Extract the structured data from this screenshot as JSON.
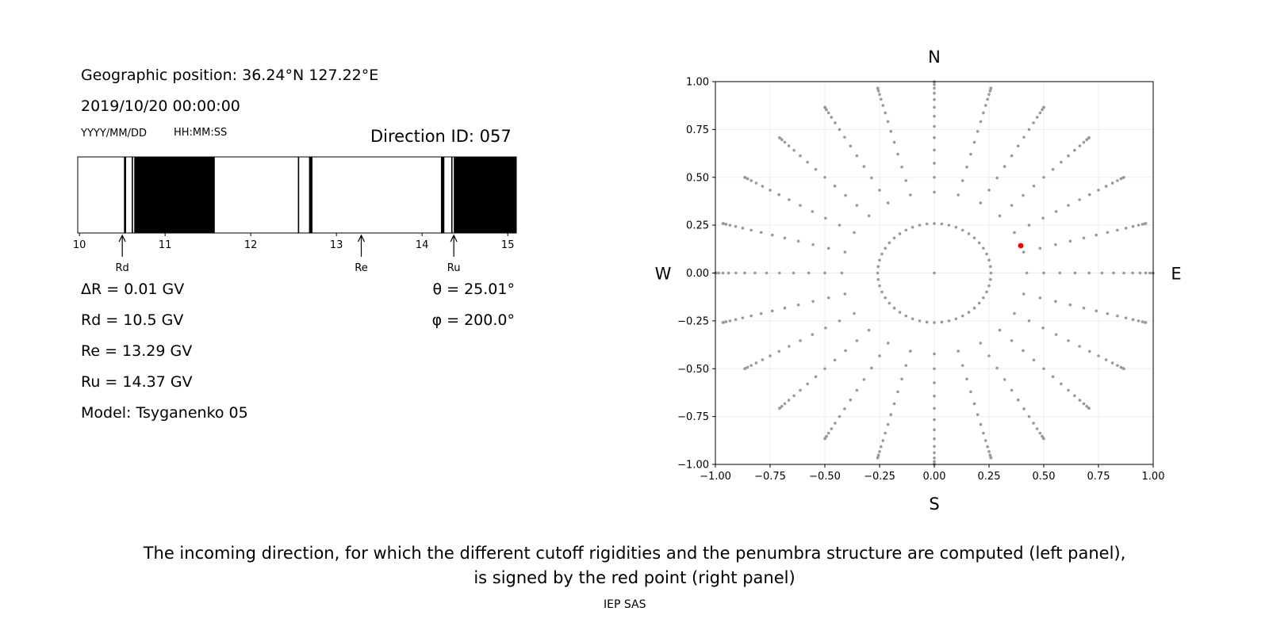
{
  "left_panel": {
    "geo_position": "Geographic position: 36.24°N 127.22°E",
    "datetime": "2019/10/20 00:00:00",
    "date_format": "YYYY/MM/DD",
    "time_format": "HH:MM:SS",
    "direction_id": "Direction ID: 057",
    "delta_r": "ΔR = 0.01 GV",
    "rd": "Rd = 10.5 GV",
    "re": "Re = 13.29 GV",
    "ru": "Ru = 14.37 GV",
    "model": "Model: Tsyganenko 05",
    "theta": "θ = 25.01°",
    "phi": "φ = 200.0°",
    "markers": [
      {
        "label": "Rd",
        "value": 10.5
      },
      {
        "label": "Re",
        "value": 13.29
      },
      {
        "label": "Ru",
        "value": 14.37
      }
    ]
  },
  "right_panel": {
    "north": "N",
    "south": "S",
    "west": "W",
    "east": "E"
  },
  "caption": {
    "line1": "The incoming direction, for which the different cutoff rigidities and the penumbra structure are computed (left panel),",
    "line2": "is signed by the red point (right panel)"
  },
  "credit": "IEP SAS",
  "chart_data": [
    {
      "type": "penumbra_bar",
      "xlim": [
        9.98,
        15.1
      ],
      "x_ticks": [
        10,
        11,
        12,
        13,
        14,
        15
      ],
      "forbidden_bands": [
        [
          10.52,
          10.545
        ],
        [
          10.61,
          10.625
        ],
        [
          10.64,
          11.58
        ],
        [
          12.55,
          12.565
        ],
        [
          12.68,
          12.72
        ],
        [
          14.22,
          14.26
        ],
        [
          14.34,
          14.355
        ],
        [
          14.37,
          15.1
        ]
      ],
      "color_allowed": "#ffffff",
      "color_forbidden": "#000000"
    },
    {
      "type": "scatter",
      "xlim": [
        -1.0,
        1.0
      ],
      "ylim": [
        -1.0,
        1.0
      ],
      "x_ticks": [
        -1.0,
        -0.75,
        -0.5,
        -0.25,
        0.0,
        0.25,
        0.5,
        0.75,
        1.0
      ],
      "y_ticks": [
        -1.0,
        -0.75,
        -0.5,
        -0.25,
        0.0,
        0.25,
        0.5,
        0.75,
        1.0
      ],
      "x_tick_labels": [
        "−1.00",
        "−0.75",
        "−0.50",
        "−0.25",
        "0.00",
        "0.25",
        "0.50",
        "0.75",
        "1.00"
      ],
      "y_tick_labels": [
        "−1.00",
        "−0.75",
        "−0.50",
        "−0.25",
        "0.00",
        "0.25",
        "0.50",
        "0.75",
        "1.00"
      ],
      "grid": true,
      "grid_directions": {
        "zenith_step_deg": 5,
        "zenith_max_deg": 90,
        "azimuth_count": 24,
        "first_ring_deg": 15,
        "first_ring_azimuth_count": 48,
        "second_ring_deg": 25,
        "second_ring_azimuth_count": 24
      },
      "grid_color": "#999999",
      "selected_point": {
        "x": 0.395,
        "y": 0.143
      },
      "selected_color": "#ff0000"
    }
  ]
}
